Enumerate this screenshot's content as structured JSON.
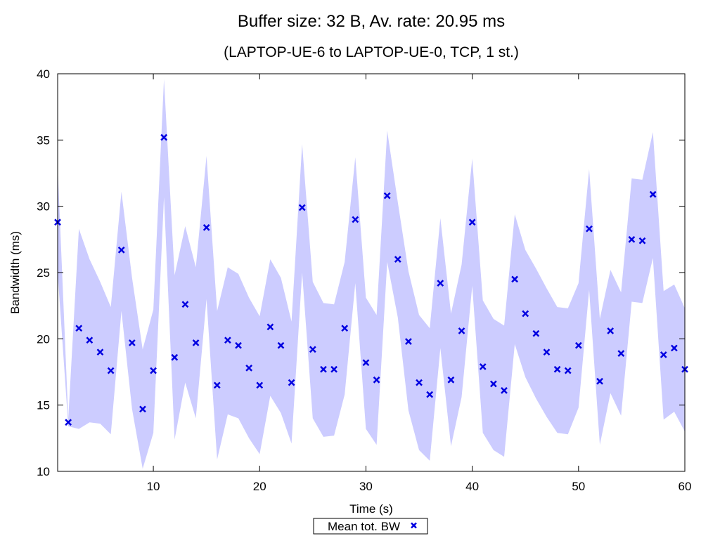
{
  "chart_data": {
    "type": "scatter",
    "title": "Buffer size: 32 B, Av. rate: 20.95 ms",
    "subtitle": "(LAPTOP-UE-6 to LAPTOP-UE-0, TCP, 1 st.)",
    "xlabel": "Time (s)",
    "ylabel": "Bandwidth (ms)",
    "xlim": [
      1,
      60
    ],
    "ylim": [
      10,
      40
    ],
    "x_ticks": [
      10,
      20,
      30,
      40,
      50,
      60
    ],
    "y_ticks": [
      10,
      15,
      20,
      25,
      30,
      35,
      40
    ],
    "grid": false,
    "legend_position": "bottom-center",
    "series": [
      {
        "name": "Mean tot. BW",
        "marker": "x",
        "color": "#0000e0",
        "band_color": "#ccccff",
        "x": [
          1,
          2,
          3,
          4,
          5,
          6,
          7,
          8,
          9,
          10,
          11,
          12,
          13,
          14,
          15,
          16,
          17,
          18,
          19,
          20,
          21,
          22,
          23,
          24,
          25,
          26,
          27,
          28,
          29,
          30,
          31,
          32,
          33,
          34,
          35,
          36,
          37,
          38,
          39,
          40,
          41,
          42,
          43,
          44,
          45,
          46,
          47,
          48,
          49,
          50,
          51,
          52,
          53,
          54,
          55,
          56,
          57,
          58,
          59,
          60
        ],
        "values": [
          28.8,
          13.7,
          20.8,
          19.9,
          19.0,
          17.6,
          26.7,
          19.7,
          14.7,
          17.6,
          35.2,
          18.6,
          22.6,
          19.7,
          28.4,
          16.5,
          19.9,
          19.5,
          17.8,
          16.5,
          20.9,
          19.5,
          16.7,
          29.9,
          19.2,
          17.7,
          17.7,
          20.8,
          29.0,
          18.2,
          16.9,
          30.8,
          26.0,
          19.8,
          16.7,
          15.8,
          24.2,
          16.9,
          20.6,
          28.8,
          17.9,
          16.6,
          16.1,
          24.5,
          21.9,
          20.4,
          19.0,
          17.7,
          17.6,
          19.5,
          28.3,
          16.8,
          20.6,
          18.9,
          27.5,
          27.4,
          30.9,
          18.8,
          19.3,
          17.7
        ],
        "upper": [
          33.0,
          14.0,
          28.3,
          26.0,
          24.3,
          22.4,
          31.1,
          24.6,
          19.2,
          22.2,
          39.6,
          24.8,
          28.5,
          25.4,
          33.8,
          22.1,
          25.4,
          24.9,
          23.1,
          21.7,
          26.0,
          24.6,
          21.3,
          34.7,
          24.3,
          22.7,
          22.6,
          25.8,
          33.7,
          23.1,
          21.8,
          35.7,
          30.3,
          25.1,
          21.8,
          20.8,
          29.1,
          21.9,
          25.6,
          33.6,
          22.9,
          21.5,
          21.0,
          29.4,
          26.7,
          25.3,
          23.8,
          22.4,
          22.3,
          24.2,
          32.8,
          21.5,
          25.2,
          23.5,
          32.1,
          32.0,
          35.6,
          23.6,
          24.1,
          22.3
        ],
        "lower": [
          25.0,
          13.4,
          13.2,
          13.7,
          13.6,
          12.8,
          22.1,
          14.7,
          10.2,
          12.9,
          30.7,
          12.4,
          16.7,
          14.0,
          23.0,
          10.9,
          14.3,
          14.0,
          12.5,
          11.3,
          15.7,
          14.4,
          12.1,
          25.0,
          14.0,
          12.6,
          12.7,
          15.8,
          24.2,
          13.2,
          12.0,
          25.8,
          21.6,
          14.6,
          11.6,
          10.8,
          19.3,
          11.9,
          15.6,
          24.0,
          12.9,
          11.6,
          11.1,
          19.6,
          17.1,
          15.5,
          14.1,
          12.9,
          12.8,
          14.8,
          23.7,
          12.0,
          15.9,
          14.2,
          22.8,
          22.7,
          26.1,
          13.9,
          14.5,
          13.0
        ]
      }
    ]
  }
}
